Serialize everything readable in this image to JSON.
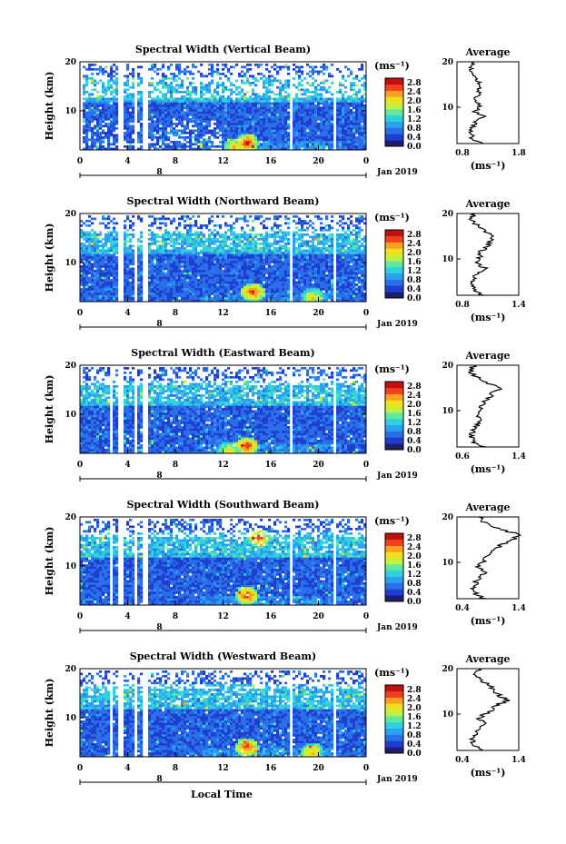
{
  "chart_data": [
    {
      "type": "heatmap",
      "title": "Spectral Width (Vertical Beam)",
      "ylabel": "Height (km)",
      "ylim": [
        2,
        20
      ],
      "xlim": [
        0,
        24
      ],
      "x_ticks": [
        "0",
        "4",
        "8",
        "12",
        "16",
        "20",
        "0"
      ],
      "y_ticks": [
        "10",
        "20"
      ],
      "date_label": "Jan 2019",
      "day_label": "8",
      "colorbar": {
        "unit": "(ms⁻¹)",
        "ticks": [
          "0.0",
          "0.4",
          "0.8",
          "1.2",
          "1.6",
          "2.0",
          "2.4",
          "2.8"
        ],
        "range": [
          0,
          3.0
        ]
      },
      "data_gaps_hours": [
        [
          0,
          0.3
        ],
        [
          3.3,
          3.55
        ],
        [
          4.5,
          4.8
        ],
        [
          5.3,
          5.6
        ],
        [
          17.7,
          17.9
        ],
        [
          21.3,
          21.5
        ]
      ],
      "high_width_events": [
        {
          "x": 14.0,
          "y": 3.5,
          "value": 2.8
        },
        {
          "x": 13.0,
          "y": 2.5,
          "value": 2.4
        }
      ],
      "profile": {
        "title": "Average",
        "xlim": [
          0.4,
          1.8
        ],
        "x_ticks": [
          "0.8",
          "1.8"
        ],
        "y_ticks": [
          "10",
          "20"
        ],
        "xlabel": "(ms⁻¹)",
        "height": [
          2,
          3,
          4,
          5,
          6,
          7,
          8,
          9,
          10,
          11,
          12,
          13,
          14,
          15,
          16,
          17,
          18,
          19,
          20
        ],
        "value": [
          0.95,
          0.75,
          0.72,
          0.74,
          0.78,
          0.85,
          1.05,
          0.8,
          0.9,
          0.85,
          0.8,
          0.92,
          0.88,
          0.95,
          0.85,
          0.8,
          0.72,
          0.7,
          0.78
        ]
      }
    },
    {
      "type": "heatmap",
      "title": "Spectral Width (Northward Beam)",
      "ylabel": "Height (km)",
      "ylim": [
        2,
        20
      ],
      "xlim": [
        0,
        24
      ],
      "x_ticks": [
        "0",
        "4",
        "8",
        "12",
        "16",
        "20",
        "0"
      ],
      "y_ticks": [
        "10",
        "20"
      ],
      "date_label": "Jan 2019",
      "day_label": "8",
      "colorbar": {
        "unit": "(ms⁻¹)",
        "ticks": [
          "0.0",
          "0.4",
          "0.8",
          "1.2",
          "1.6",
          "2.0",
          "2.4",
          "2.8"
        ],
        "range": [
          0,
          3.0
        ]
      },
      "data_gaps_hours": [
        [
          3.3,
          3.55
        ],
        [
          4.5,
          4.8
        ],
        [
          5.3,
          5.6
        ],
        [
          17.7,
          17.9
        ],
        [
          21.3,
          21.5
        ]
      ],
      "high_width_events": [
        {
          "x": 14.5,
          "y": 4.0,
          "value": 2.8
        },
        {
          "x": 19.5,
          "y": 3.0,
          "value": 2.2
        }
      ],
      "profile": {
        "title": "Average",
        "xlim": [
          0.4,
          1.6
        ],
        "x_ticks": [
          "0.8",
          "1.4"
        ],
        "y_ticks": [
          "10",
          "20"
        ],
        "xlabel": "(ms⁻¹)",
        "height": [
          2,
          3,
          4,
          5,
          6,
          7,
          8,
          9,
          10,
          11,
          12,
          13,
          14,
          15,
          16,
          17,
          18,
          19,
          20
        ],
        "value": [
          0.9,
          0.75,
          0.7,
          0.72,
          0.75,
          0.8,
          0.95,
          0.78,
          0.85,
          0.82,
          0.9,
          1.0,
          1.05,
          1.1,
          0.95,
          0.85,
          0.72,
          0.68,
          0.75
        ]
      }
    },
    {
      "type": "heatmap",
      "title": "Spectral Width (Eastward Beam)",
      "ylabel": "Height (km)",
      "ylim": [
        2,
        20
      ],
      "xlim": [
        0,
        24
      ],
      "x_ticks": [
        "0",
        "4",
        "8",
        "12",
        "16",
        "20",
        "0"
      ],
      "y_ticks": [
        "10",
        "20"
      ],
      "date_label": "Jan 2019",
      "day_label": "8",
      "colorbar": {
        "unit": "(ms⁻¹)",
        "ticks": [
          "0.0",
          "0.4",
          "0.8",
          "1.2",
          "1.6",
          "2.0",
          "2.4",
          "2.8"
        ],
        "range": [
          0,
          3.0
        ]
      },
      "data_gaps_hours": [
        [
          2.5,
          2.8
        ],
        [
          3.3,
          3.55
        ],
        [
          4.5,
          4.8
        ],
        [
          5.3,
          5.6
        ],
        [
          17.7,
          17.9
        ],
        [
          21.3,
          21.5
        ]
      ],
      "high_width_events": [
        {
          "x": 14.0,
          "y": 3.5,
          "value": 2.8
        },
        {
          "x": 12.5,
          "y": 2.5,
          "value": 2.2
        }
      ],
      "profile": {
        "title": "Average",
        "xlim": [
          0.4,
          1.6
        ],
        "x_ticks": [
          "0.6",
          "1.4"
        ],
        "y_ticks": [
          "10",
          "20"
        ],
        "xlabel": "(ms⁻¹)",
        "height": [
          2,
          3,
          4,
          5,
          6,
          7,
          8,
          9,
          10,
          11,
          12,
          13,
          14,
          15,
          16,
          17,
          18,
          19,
          20
        ],
        "value": [
          0.9,
          0.72,
          0.68,
          0.7,
          0.74,
          0.8,
          0.9,
          0.78,
          0.88,
          0.85,
          0.95,
          1.05,
          1.1,
          1.3,
          1.0,
          0.85,
          0.7,
          0.68,
          0.72
        ]
      }
    },
    {
      "type": "heatmap",
      "title": "Spectral Width (Southward Beam)",
      "ylabel": "Height (km)",
      "ylim": [
        2,
        20
      ],
      "xlim": [
        0,
        24
      ],
      "x_ticks": [
        "0",
        "4",
        "8",
        "12",
        "16",
        "20",
        "0"
      ],
      "y_ticks": [
        "10",
        "20"
      ],
      "date_label": "Jan 2019",
      "day_label": "8",
      "colorbar": {
        "unit": "(ms⁻¹)",
        "ticks": [
          "0.0",
          "0.4",
          "0.8",
          "1.2",
          "1.6",
          "2.0",
          "2.4",
          "2.8"
        ],
        "range": [
          0,
          3.0
        ]
      },
      "data_gaps_hours": [
        [
          2.5,
          2.8
        ],
        [
          3.3,
          3.55
        ],
        [
          4.5,
          4.8
        ],
        [
          5.3,
          5.6
        ],
        [
          17.7,
          17.9
        ],
        [
          21.3,
          21.5
        ]
      ],
      "high_width_events": [
        {
          "x": 14.0,
          "y": 4.0,
          "value": 2.8
        },
        {
          "x": 15.0,
          "y": 16.0,
          "value": 2.6
        }
      ],
      "profile": {
        "title": "Average",
        "xlim": [
          0.4,
          1.4
        ],
        "x_ticks": [
          "0.4",
          "1.4"
        ],
        "y_ticks": [
          "10",
          "20"
        ],
        "xlabel": "(ms⁻¹)",
        "height": [
          2,
          3,
          4,
          5,
          6,
          7,
          8,
          9,
          10,
          11,
          12,
          13,
          14,
          15,
          16,
          17,
          18,
          19,
          20
        ],
        "value": [
          0.85,
          0.7,
          0.65,
          0.68,
          0.7,
          0.78,
          0.85,
          0.72,
          0.8,
          0.85,
          0.95,
          1.0,
          1.15,
          1.3,
          1.4,
          1.2,
          0.95,
          0.8,
          0.75
        ]
      }
    },
    {
      "type": "heatmap",
      "title": "Spectral Width (Westward Beam)",
      "ylabel": "Height (km)",
      "ylim": [
        2,
        20
      ],
      "xlim": [
        0,
        24
      ],
      "x_ticks": [
        "0",
        "4",
        "8",
        "12",
        "16",
        "20",
        "0"
      ],
      "y_ticks": [
        "10",
        "20"
      ],
      "date_label": "Jan 2019",
      "day_label": "8",
      "colorbar": {
        "unit": "(ms⁻¹)",
        "ticks": [
          "0.0",
          "0.4",
          "0.8",
          "1.2",
          "1.6",
          "2.0",
          "2.4",
          "2.8"
        ],
        "range": [
          0,
          3.0
        ]
      },
      "data_gaps_hours": [
        [
          2.5,
          2.8
        ],
        [
          3.3,
          3.55
        ],
        [
          4.5,
          4.8
        ],
        [
          5.3,
          5.6
        ],
        [
          17.7,
          17.9
        ],
        [
          21.3,
          21.5
        ]
      ],
      "high_width_events": [
        {
          "x": 14.0,
          "y": 4.0,
          "value": 2.8
        },
        {
          "x": 19.5,
          "y": 3.0,
          "value": 2.4
        }
      ],
      "profile": {
        "title": "Average",
        "xlim": [
          0.4,
          1.4
        ],
        "x_ticks": [
          "0.4",
          "1.4"
        ],
        "y_ticks": [
          "10",
          "20"
        ],
        "xlabel": "(ms⁻¹)",
        "height": [
          2,
          3,
          4,
          5,
          6,
          7,
          8,
          9,
          10,
          11,
          12,
          13,
          14,
          15,
          16,
          17,
          18,
          19,
          20
        ],
        "value": [
          0.85,
          0.7,
          0.65,
          0.68,
          0.7,
          0.78,
          0.9,
          0.75,
          0.85,
          0.95,
          1.05,
          1.2,
          1.1,
          0.95,
          1.0,
          0.85,
          0.72,
          0.7,
          0.75
        ]
      }
    }
  ],
  "footer": {
    "xlabel": "Local Time"
  },
  "colors": {
    "background": "#ffffff",
    "colormap": [
      "#1a1a80",
      "#1e3fd0",
      "#2a6fe8",
      "#2aa0f0",
      "#30d0e0",
      "#60e8a0",
      "#c0f040",
      "#f0e020",
      "#f8a020",
      "#f04020",
      "#c01010"
    ]
  }
}
